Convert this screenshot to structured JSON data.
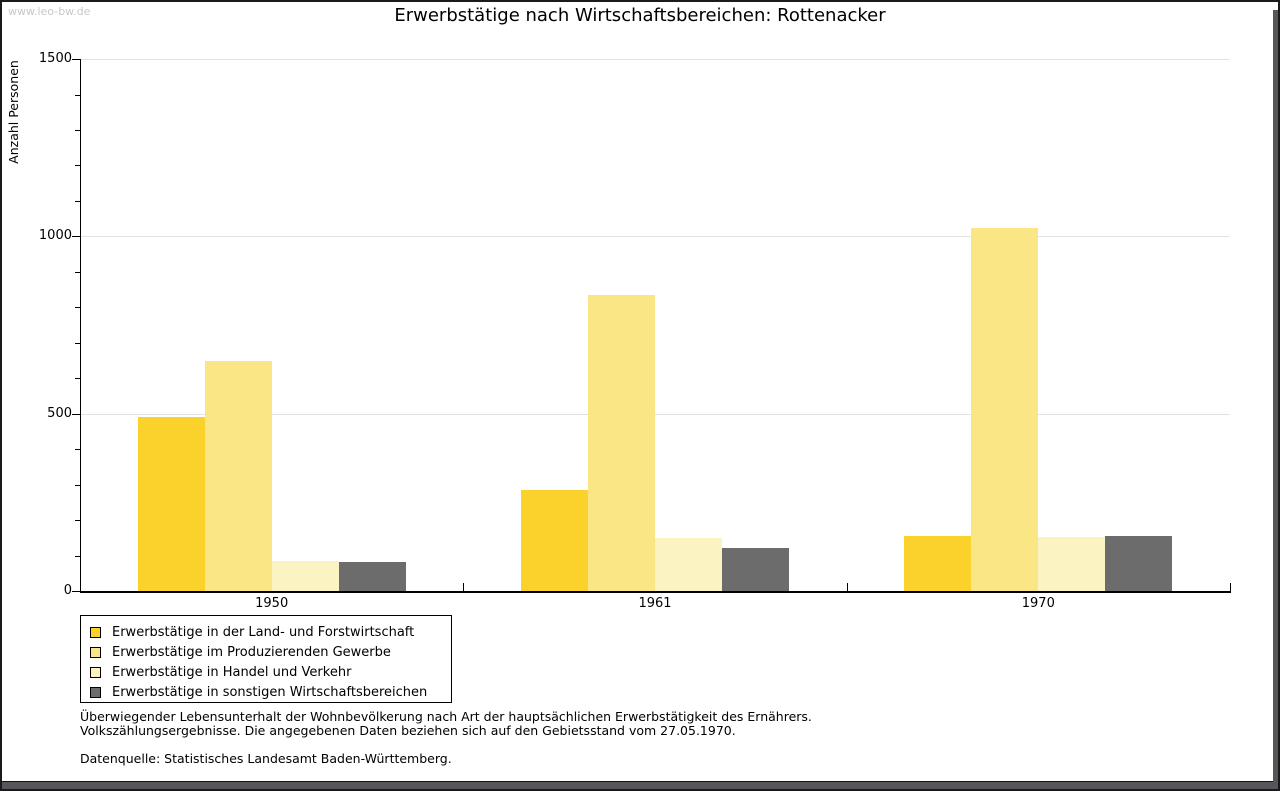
{
  "watermark": "www.leo-bw.de",
  "title": "Erwerbstätige nach Wirtschaftsbereichen: Rottenacker",
  "chart_data": {
    "type": "bar",
    "title": "Erwerbstätige nach Wirtschaftsbereichen: Rottenacker",
    "xlabel": "",
    "ylabel": "Anzahl Personen",
    "categories": [
      "1950",
      "1961",
      "1970"
    ],
    "series": [
      {
        "name": "Erwerbstätige in der Land- und Forstwirtschaft",
        "color": "#fbd22c",
        "values": [
          490,
          285,
          155
        ]
      },
      {
        "name": "Erwerbstätige im Produzierenden Gewerbe",
        "color": "#fbe685",
        "values": [
          650,
          835,
          1025
        ]
      },
      {
        "name": "Erwerbstätige in Handel und Verkehr",
        "color": "#fcf3c3",
        "values": [
          85,
          150,
          153
        ]
      },
      {
        "name": "Erwerbstätige in sonstigen Wirtschaftsbereichen",
        "color": "#6c6c6c",
        "values": [
          82,
          120,
          155
        ]
      }
    ],
    "ylim": [
      0,
      1500
    ],
    "yticks": [
      0,
      500,
      1000,
      1500
    ],
    "y_minor_step": 100,
    "grid": true,
    "legend_position": "bottom-left"
  },
  "footer": {
    "line1": "Überwiegender Lebensunterhalt der Wohnbevölkerung nach Art der hauptsächlichen Erwerbstätigkeit des Ernährers.",
    "line2": "Volkszählungsergebnisse. Die angegebenen Daten beziehen sich auf den Gebietsstand vom 27.05.1970.",
    "source": "Datenquelle: Statistisches Landesamt Baden-Württemberg."
  }
}
